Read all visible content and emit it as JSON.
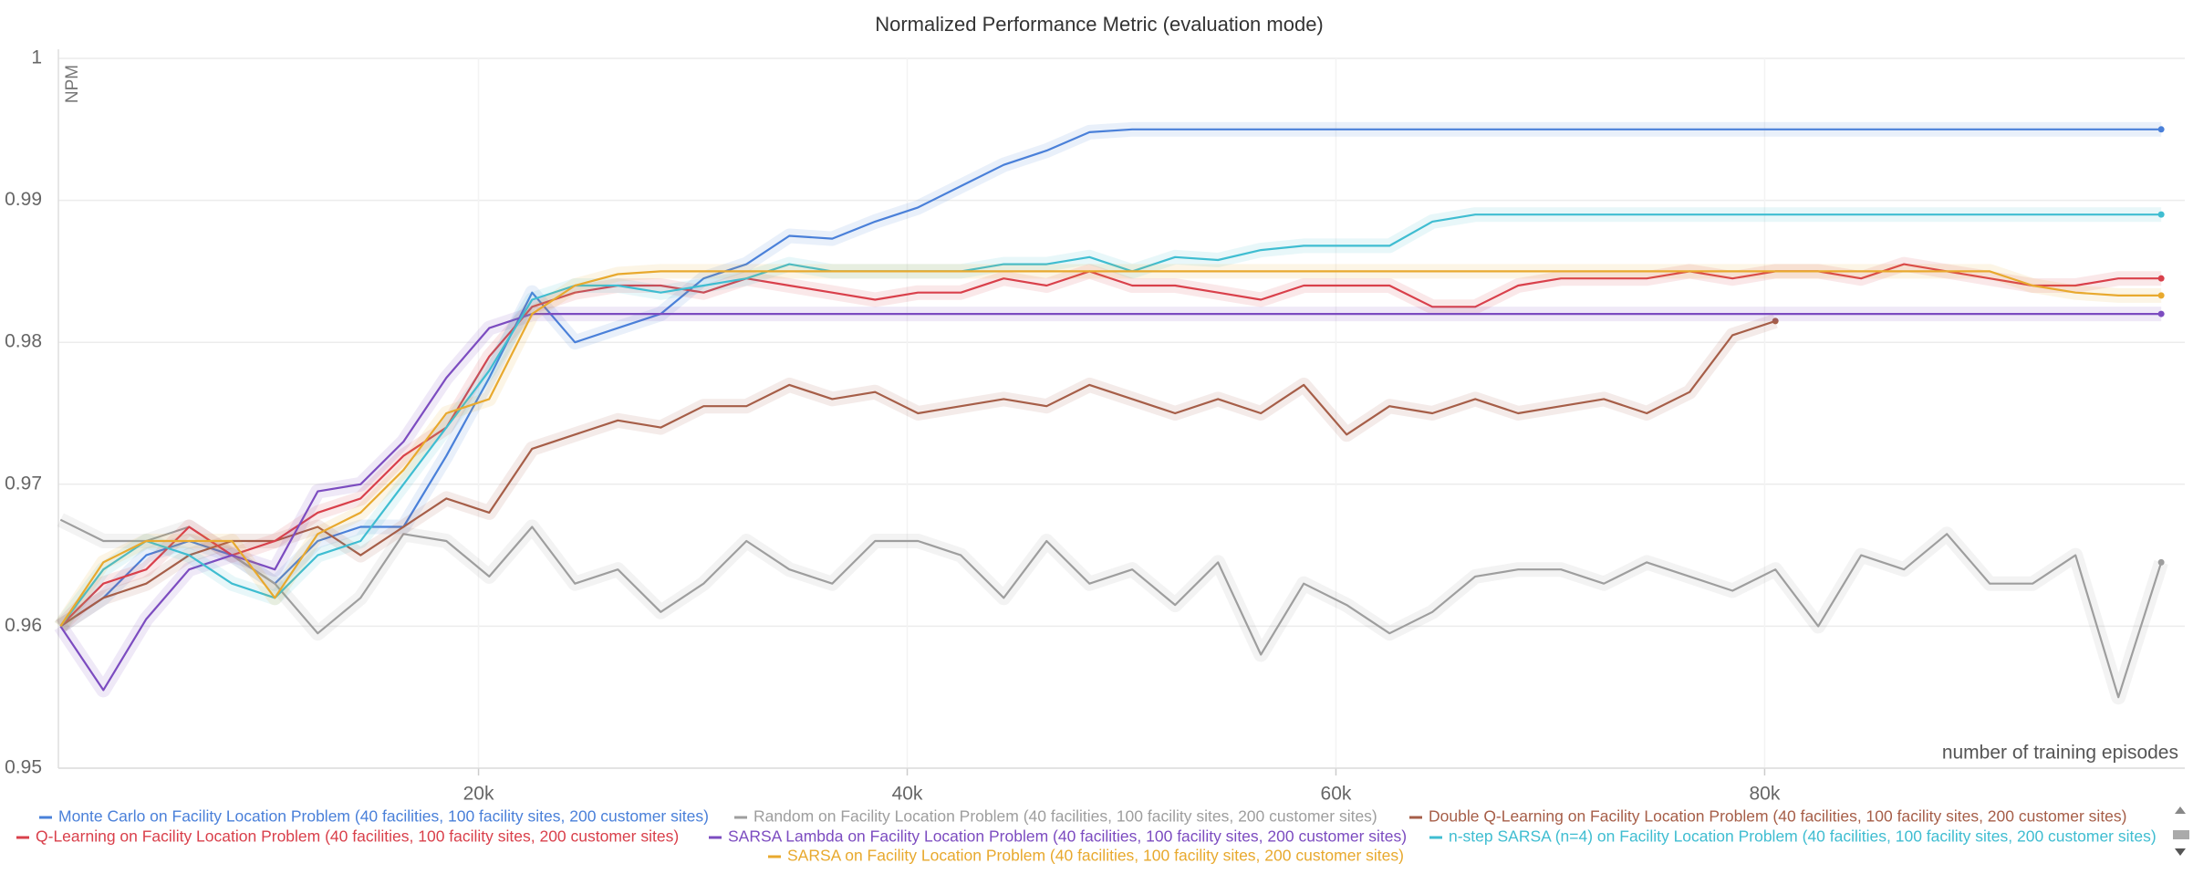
{
  "chart_data": {
    "type": "line",
    "title": "Normalized Performance Metric (evaluation mode)",
    "y_label": "NPM",
    "x_label": "number of training episodes",
    "x": [
      500,
      2500,
      4500,
      6500,
      8500,
      10500,
      12500,
      14500,
      16500,
      18500,
      20500,
      22500,
      24500,
      26500,
      28500,
      30500,
      32500,
      34500,
      36500,
      38500,
      40500,
      42500,
      44500,
      46500,
      48500,
      50500,
      52500,
      54500,
      56500,
      58500,
      60500,
      62500,
      64500,
      66500,
      68500,
      70500,
      72500,
      74500,
      76500,
      78500,
      80500,
      82500,
      84500,
      86500,
      88500,
      90500,
      92500,
      94500,
      96500,
      98500
    ],
    "xlim": [
      400,
      99600
    ],
    "xticks": [
      {
        "value": 20000,
        "label": "20k"
      },
      {
        "value": 40000,
        "label": "40k"
      },
      {
        "value": 60000,
        "label": "60k"
      },
      {
        "value": 80000,
        "label": "80k"
      }
    ],
    "ylim": [
      0.95,
      1
    ],
    "yticks": [
      0.95,
      0.96,
      0.97,
      0.98,
      0.99,
      1
    ],
    "grid": true,
    "series": [
      {
        "name": "Monte Carlo on Facility Location Problem (40 facilities, 100 facility sites, 200 customer sites)",
        "color": "#4a80d9",
        "values": [
          0.96,
          0.962,
          0.965,
          0.966,
          0.965,
          0.963,
          0.966,
          0.967,
          0.967,
          0.972,
          0.9775,
          0.9835,
          0.98,
          0.981,
          0.982,
          0.9845,
          0.9855,
          0.9875,
          0.9873,
          0.9885,
          0.9895,
          0.991,
          0.9925,
          0.9935,
          0.9948,
          0.995,
          0.995,
          0.995,
          0.995,
          0.995,
          0.995,
          0.995,
          0.995,
          0.995,
          0.995,
          0.995,
          0.995,
          0.995,
          0.995,
          0.995,
          0.995,
          0.995,
          0.995,
          0.995,
          0.995,
          0.995,
          0.995,
          0.995,
          0.995,
          0.995
        ]
      },
      {
        "name": "Random on Facility Location Problem (40 facilities, 100 facility sites, 200 customer sites)",
        "color": "#9e9e9e",
        "values": [
          0.9675,
          0.966,
          0.966,
          0.967,
          0.965,
          0.963,
          0.9595,
          0.962,
          0.9665,
          0.966,
          0.9635,
          0.967,
          0.963,
          0.964,
          0.961,
          0.963,
          0.966,
          0.964,
          0.963,
          0.966,
          0.966,
          0.965,
          0.962,
          0.966,
          0.963,
          0.964,
          0.9615,
          0.9645,
          0.958,
          0.963,
          0.9615,
          0.9595,
          0.961,
          0.9635,
          0.964,
          0.964,
          0.963,
          0.9645,
          0.9635,
          0.9625,
          0.964,
          0.96,
          0.965,
          0.964,
          0.9665,
          0.963,
          0.963,
          0.965,
          0.955,
          0.9645
        ]
      },
      {
        "name": "Double Q-Learning on Facility Location Problem (40 facilities, 100 facility sites, 200 customer sites)",
        "color": "#a65e48",
        "values": [
          0.96,
          0.962,
          0.963,
          0.965,
          0.966,
          0.966,
          0.967,
          0.965,
          0.967,
          0.969,
          0.968,
          0.9725,
          0.9735,
          0.9745,
          0.974,
          0.9755,
          0.9755,
          0.977,
          0.976,
          0.9765,
          0.975,
          0.9755,
          0.976,
          0.9755,
          0.977,
          0.976,
          0.975,
          0.976,
          0.975,
          0.977,
          0.9735,
          0.9755,
          0.975,
          0.976,
          0.975,
          0.9755,
          0.976,
          0.975,
          0.9765,
          0.9805,
          0.9815,
          null,
          null,
          null,
          null,
          null,
          null,
          null,
          null,
          null
        ]
      },
      {
        "name": "Q-Learning on Facility Location Problem (40 facilities, 100 facility sites, 200 customer sites)",
        "color": "#d9404b",
        "values": [
          0.96,
          0.963,
          0.964,
          0.967,
          0.965,
          0.966,
          0.968,
          0.969,
          0.972,
          0.974,
          0.979,
          0.9825,
          0.9835,
          0.984,
          0.984,
          0.9835,
          0.9845,
          0.984,
          0.9835,
          0.983,
          0.9835,
          0.9835,
          0.9845,
          0.984,
          0.985,
          0.984,
          0.984,
          0.9835,
          0.983,
          0.984,
          0.984,
          0.984,
          0.9825,
          0.9825,
          0.984,
          0.9845,
          0.9845,
          0.9845,
          0.985,
          0.9845,
          0.985,
          0.985,
          0.9845,
          0.9855,
          0.985,
          0.9845,
          0.984,
          0.984,
          0.9845,
          0.9845
        ]
      },
      {
        "name": "SARSA Lambda on Facility Location Problem (40 facilities, 100 facility sites, 200 customer sites)",
        "color": "#7c4cc0",
        "values": [
          0.96,
          0.9555,
          0.9605,
          0.964,
          0.965,
          0.964,
          0.9695,
          0.97,
          0.973,
          0.9775,
          0.981,
          0.982,
          0.982,
          0.982,
          0.982,
          0.982,
          0.982,
          0.982,
          0.982,
          0.982,
          0.982,
          0.982,
          0.982,
          0.982,
          0.982,
          0.982,
          0.982,
          0.982,
          0.982,
          0.982,
          0.982,
          0.982,
          0.982,
          0.982,
          0.982,
          0.982,
          0.982,
          0.982,
          0.982,
          0.982,
          0.982,
          0.982,
          0.982,
          0.982,
          0.982,
          0.982,
          0.982,
          0.982,
          0.982,
          0.982
        ]
      },
      {
        "name": "n-step SARSA (n=4) on Facility Location Problem (40 facilities, 100 facility sites, 200 customer sites)",
        "color": "#3fbdd1",
        "values": [
          0.96,
          0.964,
          0.966,
          0.965,
          0.963,
          0.962,
          0.965,
          0.966,
          0.97,
          0.974,
          0.978,
          0.983,
          0.984,
          0.984,
          0.9835,
          0.984,
          0.9845,
          0.9855,
          0.985,
          0.985,
          0.985,
          0.985,
          0.9855,
          0.9855,
          0.986,
          0.985,
          0.986,
          0.9858,
          0.9865,
          0.9868,
          0.9868,
          0.9868,
          0.9885,
          0.989,
          0.989,
          0.989,
          0.989,
          0.989,
          0.989,
          0.989,
          0.989,
          0.989,
          0.989,
          0.989,
          0.989,
          0.989,
          0.989,
          0.989,
          0.989,
          0.989
        ]
      },
      {
        "name": "SARSA on Facility Location Problem (40 facilities, 100 facility sites, 200 customer sites)",
        "color": "#e8a92e",
        "values": [
          0.96,
          0.9645,
          0.966,
          0.966,
          0.966,
          0.962,
          0.9665,
          0.968,
          0.971,
          0.975,
          0.976,
          0.982,
          0.984,
          0.9848,
          0.985,
          0.985,
          0.985,
          0.985,
          0.985,
          0.985,
          0.985,
          0.985,
          0.985,
          0.985,
          0.985,
          0.985,
          0.985,
          0.985,
          0.985,
          0.985,
          0.985,
          0.985,
          0.985,
          0.985,
          0.985,
          0.985,
          0.985,
          0.985,
          0.985,
          0.985,
          0.985,
          0.985,
          0.985,
          0.985,
          0.985,
          0.985,
          0.984,
          0.9835,
          0.9833,
          0.9833
        ]
      }
    ]
  }
}
